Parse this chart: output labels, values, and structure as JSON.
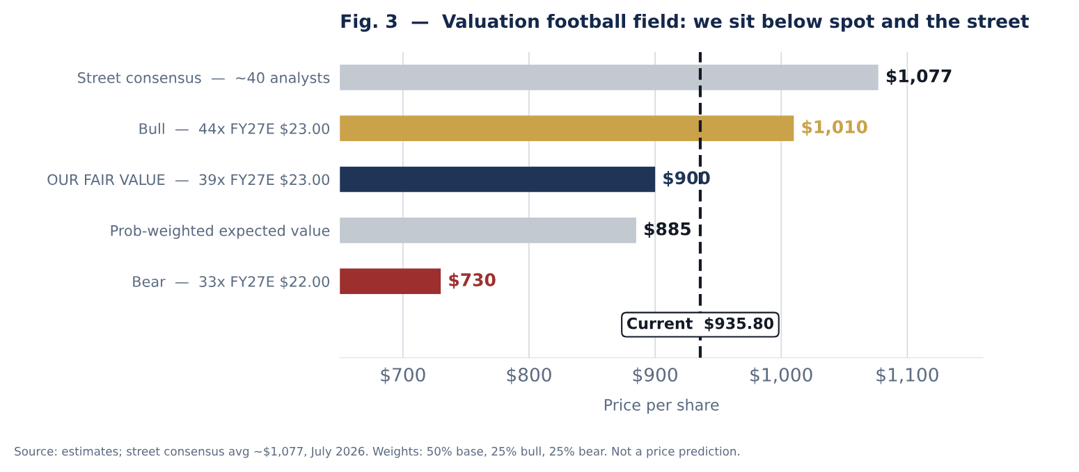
{
  "chart_data": {
    "type": "bar",
    "orientation": "horizontal",
    "title": "Fig. 3  —  Valuation football field: we sit below spot and the street",
    "xlabel": "Price per share",
    "categories": [
      "Street consensus  —  ~40 analysts",
      "Bull  —  44x FY27E $23.00",
      "OUR FAIR VALUE  —  39x FY27E $23.00",
      "Prob-weighted expected value",
      "Bear  —  33x FY27E $22.00"
    ],
    "values": [
      1077,
      1010,
      900,
      885,
      730
    ],
    "colors": [
      "#c3c9d1",
      "#c9a24a",
      "#1f3557",
      "#c3c9d1",
      "#9e2f2f"
    ],
    "value_labels": [
      "$1,077",
      "$1,010",
      "$900",
      "$885",
      "$730"
    ],
    "xlim": [
      650,
      1160
    ],
    "xticks": [
      {
        "value": 700,
        "label": "$700"
      },
      {
        "value": 800,
        "label": "$800"
      },
      {
        "value": 900,
        "label": "$900"
      },
      {
        "value": 1000,
        "label": "$1,000"
      },
      {
        "value": 1100,
        "label": "$1,100"
      }
    ],
    "grid": "x",
    "ref_lines": [
      {
        "axis": "x",
        "value": 935.8,
        "label": "Current  $935.80",
        "color": "#131a26",
        "line_style": "dashed"
      }
    ],
    "annotations": [
      "Source: estimates; street consensus avg ~$1,077, July 2026. Weights: 50% base, 25% bull, 25% bear. Not a price prediction."
    ]
  }
}
